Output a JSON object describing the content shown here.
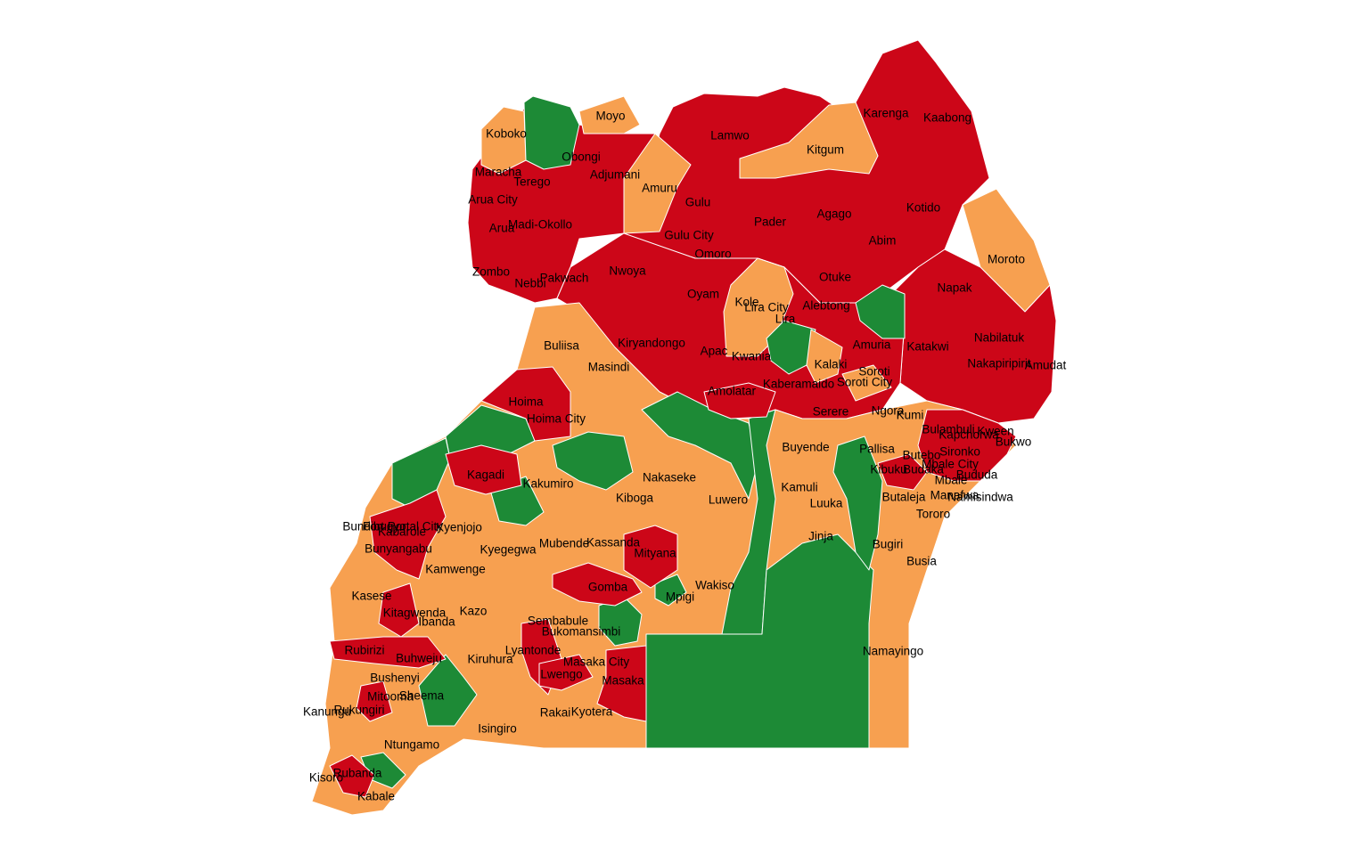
{
  "colors": {
    "red": "#cc0618",
    "orange": "#f7a050",
    "green": "#1d8a36"
  },
  "labels": [
    "Koboko",
    "Moyo",
    "Obongi",
    "Maracha",
    "Terego",
    "Adjumani",
    "Arua City",
    "Amuru",
    "Madi-Okollo",
    "Arua",
    "Zombo",
    "Nebbi",
    "Pakwach",
    "Nwoya",
    "Gulu",
    "Gulu City",
    "Omoro",
    "Lamwo",
    "Kitgum",
    "Pader",
    "Agago",
    "Karenga",
    "Kaabong",
    "Kotido",
    "Abim",
    "Moroto",
    "Napak",
    "Otuke",
    "Oyam",
    "Kole",
    "Lira City",
    "Lira",
    "Alebtong",
    "Kiryandongo",
    "Apac",
    "Kwania",
    "Amuria",
    "Katakwi",
    "Nabilatuk",
    "Nakapiripirit",
    "Amudat",
    "Buliisa",
    "Masindi",
    "Kalaki",
    "Soroti",
    "Soroti City",
    "Amolatar",
    "Kaberamaido",
    "Serere",
    "Ngora",
    "Kumi",
    "Hoima",
    "Hoima City",
    "Bulambuli",
    "Kween",
    "Bukwo",
    "Kapchorwa",
    "Buyende",
    "Pallisa",
    "Butebo",
    "Sironko",
    "Mbale City",
    "Budaka",
    "Bududa",
    "Kibuku",
    "Mbale",
    "Manafwa",
    "Namisindwa",
    "Kagadi",
    "Nakaseke",
    "Kakumiro",
    "Kiboga",
    "Kamuli",
    "Luwero",
    "Butaleja",
    "Luuka",
    "Tororo",
    "Bundibugyo",
    "Fort Portal City",
    "Kyenjojo",
    "Kabarole",
    "Bunyangabu",
    "Kyegegwa",
    "Mubende",
    "Kassanda",
    "Jinja",
    "Bugiri",
    "Kamwenge",
    "Mityana",
    "Busia",
    "Wakiso",
    "Gomba",
    "Mpigi",
    "Kasese",
    "Kitagwenda",
    "Kazo",
    "Ibanda",
    "Sembabule",
    "Bukomansimbi",
    "Lyantonde",
    "Rubirizi",
    "Buhweju",
    "Kiruhura",
    "Masaka City",
    "Namayingo",
    "Lwengo",
    "Bushenyi",
    "Masaka",
    "Sheema",
    "Mitooma",
    "Kanungu",
    "Rukungiri",
    "Rakai",
    "Kyotera",
    "Isingiro",
    "Ntungamo",
    "Rubanda",
    "Kisoro",
    "Kabale"
  ]
}
